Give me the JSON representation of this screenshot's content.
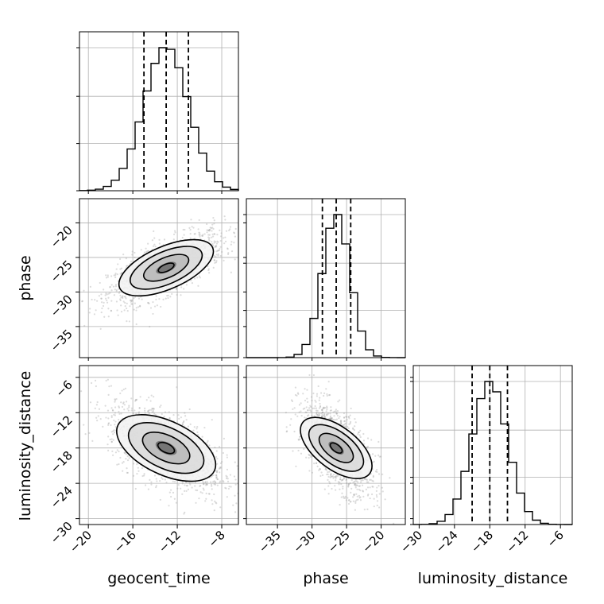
{
  "chart_data": {
    "type": "corner",
    "parameters": [
      "geocent_time",
      "phase",
      "luminosity_distance"
    ],
    "axis_labels": {
      "x": [
        "geocent_time",
        "phase",
        "luminosity_distance"
      ],
      "y_row1": "phase",
      "y_row2": "luminosity_distance"
    },
    "ranges": {
      "geocent_time": [
        -20.8,
        -6.5
      ],
      "phase": [
        -39.5,
        -16.5
      ],
      "luminosity_distance": [
        -31.0,
        -4.0
      ]
    },
    "ticks": {
      "geocent_time": [
        -20,
        -16,
        -12,
        -8
      ],
      "phase_x": [
        -35,
        -30,
        -25,
        -20
      ],
      "phase_y": [
        -20,
        -25,
        -30,
        -35
      ],
      "luminosity_distance": [
        -30,
        -24,
        -18,
        -12,
        -6
      ]
    },
    "tick_labels": {
      "geocent_time": [
        "−20",
        "−16",
        "−12",
        "−8"
      ],
      "phase_x": [
        "−35",
        "−30",
        "−25",
        "−20"
      ],
      "phase_y": [
        "−20",
        "−25",
        "−30",
        "−35"
      ],
      "luminosity_distance": [
        "−30",
        "−24",
        "−18",
        "−12",
        "−6"
      ]
    },
    "marginals": {
      "geocent_time": {
        "mean": -13.0,
        "sd": 2.0,
        "quantiles": [
          -15.0,
          -13.0,
          -11.0
        ]
      },
      "phase": {
        "mean": -26.5,
        "sd": 2.0,
        "quantiles": [
          -28.5,
          -26.5,
          -24.4
        ]
      },
      "luminosity_distance": {
        "mean": -18.0,
        "sd": 3.0,
        "quantiles": [
          -21.0,
          -18.0,
          -15.0
        ]
      }
    },
    "correlations": {
      "geocent_time__phase": 0.7,
      "geocent_time__luminosity_distance": -0.6,
      "phase__luminosity_distance": -0.6
    },
    "grid": true,
    "histogram_style": "step",
    "quantile_lines": "dashed",
    "colors": {
      "line": "#000000",
      "grid": "#b0b0b0",
      "scatter": "#9a9a9a"
    }
  }
}
